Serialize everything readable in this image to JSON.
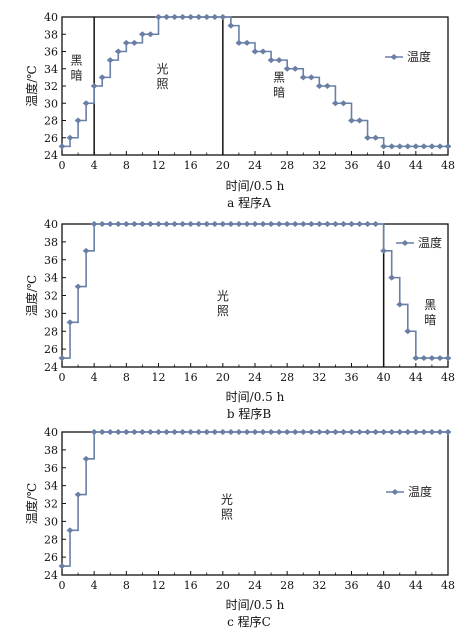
{
  "series_color": "#6a7fa6",
  "chart_data": [
    {
      "type": "line",
      "caption": "a 程序A",
      "xlabel": "时间/0.5 h",
      "ylabel": "温度/℃",
      "xlim": [
        0,
        48
      ],
      "ylim": [
        24,
        40
      ],
      "xticks": [
        0,
        4,
        8,
        12,
        16,
        20,
        24,
        28,
        32,
        36,
        40,
        44,
        48
      ],
      "yticks": [
        24,
        26,
        28,
        30,
        32,
        34,
        36,
        38,
        40
      ],
      "grid": false,
      "legend_position": "right",
      "series": [
        {
          "name": "温度",
          "x": [
            0,
            1,
            2,
            3,
            4,
            5,
            6,
            7,
            8,
            9,
            10,
            11,
            12,
            13,
            14,
            15,
            16,
            17,
            18,
            19,
            20,
            21,
            22,
            23,
            24,
            25,
            26,
            27,
            28,
            29,
            30,
            31,
            32,
            33,
            34,
            35,
            36,
            37,
            38,
            39,
            40,
            41,
            42,
            43,
            44,
            45,
            46,
            47,
            48
          ],
          "y": [
            25,
            26,
            28,
            30,
            32,
            33,
            35,
            36,
            37,
            37,
            38,
            38,
            40,
            40,
            40,
            40,
            40,
            40,
            40,
            40,
            40,
            39,
            37,
            37,
            36,
            36,
            35,
            35,
            34,
            34,
            33,
            33,
            32,
            32,
            30,
            30,
            28,
            28,
            26,
            26,
            25,
            25,
            25,
            25,
            25,
            25,
            25,
            25,
            25
          ]
        }
      ],
      "dividers": [
        4,
        20
      ],
      "annotations": [
        {
          "text": [
            "黑",
            "暗"
          ],
          "x": 1.8,
          "y": 34.5
        },
        {
          "text": [
            "光",
            "照"
          ],
          "x": 12.5,
          "y": 33.5
        },
        {
          "text": [
            "黑",
            "暗"
          ],
          "x": 27,
          "y": 32.5
        }
      ]
    },
    {
      "type": "line",
      "caption": "b 程序B",
      "xlabel": "时间/0.5 h",
      "ylabel": "温度/℃",
      "xlim": [
        0,
        48
      ],
      "ylim": [
        24,
        40
      ],
      "xticks": [
        0,
        4,
        8,
        12,
        16,
        20,
        24,
        28,
        32,
        36,
        40,
        44,
        48
      ],
      "yticks": [
        24,
        26,
        28,
        30,
        32,
        34,
        36,
        38,
        40
      ],
      "grid": false,
      "legend_position": "top-right",
      "series": [
        {
          "name": "温度",
          "x": [
            0,
            1,
            2,
            3,
            4,
            5,
            6,
            7,
            8,
            9,
            10,
            11,
            12,
            13,
            14,
            15,
            16,
            17,
            18,
            19,
            20,
            21,
            22,
            23,
            24,
            25,
            26,
            27,
            28,
            29,
            30,
            31,
            32,
            33,
            34,
            35,
            36,
            37,
            38,
            39,
            40,
            41,
            42,
            43,
            44,
            45,
            46,
            47,
            48
          ],
          "y": [
            25,
            29,
            33,
            37,
            40,
            40,
            40,
            40,
            40,
            40,
            40,
            40,
            40,
            40,
            40,
            40,
            40,
            40,
            40,
            40,
            40,
            40,
            40,
            40,
            40,
            40,
            40,
            40,
            40,
            40,
            40,
            40,
            40,
            40,
            40,
            40,
            40,
            40,
            40,
            40,
            37,
            34,
            31,
            28,
            25,
            25,
            25,
            25,
            25
          ]
        }
      ],
      "dividers": [
        40
      ],
      "annotations": [
        {
          "text": [
            "光",
            "照"
          ],
          "x": 20,
          "y": 31.5
        },
        {
          "text": [
            "黑",
            "暗"
          ],
          "x": 45.8,
          "y": 30.5
        }
      ]
    },
    {
      "type": "line",
      "caption": "c 程序C",
      "xlabel": "时间/0.5 h",
      "ylabel": "温度/℃",
      "xlim": [
        0,
        48
      ],
      "ylim": [
        24,
        40
      ],
      "xticks": [
        0,
        4,
        8,
        12,
        16,
        20,
        24,
        28,
        32,
        36,
        40,
        44,
        48
      ],
      "yticks": [
        24,
        26,
        28,
        30,
        32,
        34,
        36,
        38,
        40
      ],
      "grid": false,
      "legend_position": "right",
      "series": [
        {
          "name": "温度",
          "x": [
            0,
            1,
            2,
            3,
            4,
            5,
            6,
            7,
            8,
            9,
            10,
            11,
            12,
            13,
            14,
            15,
            16,
            17,
            18,
            19,
            20,
            21,
            22,
            23,
            24,
            25,
            26,
            27,
            28,
            29,
            30,
            31,
            32,
            33,
            34,
            35,
            36,
            37,
            38,
            39,
            40,
            41,
            42,
            43,
            44,
            45,
            46,
            47,
            48
          ],
          "y": [
            25,
            29,
            33,
            37,
            40,
            40,
            40,
            40,
            40,
            40,
            40,
            40,
            40,
            40,
            40,
            40,
            40,
            40,
            40,
            40,
            40,
            40,
            40,
            40,
            40,
            40,
            40,
            40,
            40,
            40,
            40,
            40,
            40,
            40,
            40,
            40,
            40,
            40,
            40,
            40,
            40,
            40,
            40,
            40,
            40,
            40,
            40,
            40,
            40
          ]
        }
      ],
      "dividers": [],
      "annotations": [
        {
          "text": [
            "光",
            "照"
          ],
          "x": 20.5,
          "y": 32
        }
      ]
    }
  ]
}
